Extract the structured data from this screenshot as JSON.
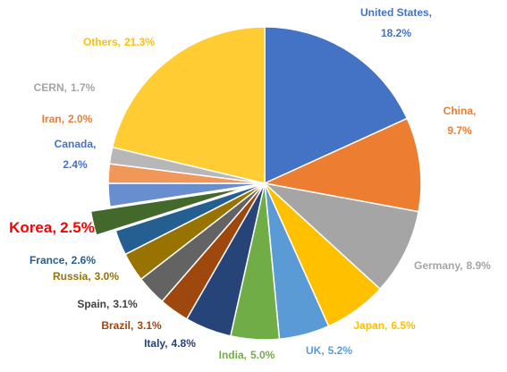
{
  "chart_data": {
    "type": "pie",
    "categories": [
      "United States,",
      "China,",
      "Germany,",
      "Japan,",
      "UK,",
      "India,",
      "Italy,",
      "Brazil,",
      "Spain,",
      "Russia,",
      "France,",
      "Korea,",
      "Canada,",
      "Iran,",
      "CERN,",
      "Others,"
    ],
    "values": [
      18.2,
      9.7,
      8.9,
      6.5,
      5.2,
      5.0,
      4.8,
      3.1,
      3.1,
      3.0,
      2.6,
      2.5,
      2.4,
      2.0,
      1.7,
      21.3
    ],
    "value_labels": [
      "18.2%",
      "9.7%",
      "8.9%",
      "6.5%",
      "5.2%",
      "5.0%",
      "4.8%",
      "3.1%",
      "3.1%",
      "3.0%",
      "2.6%",
      "2.5%",
      "2.4%",
      "2.0%",
      "1.7%",
      "21.3%"
    ],
    "colors": [
      "#4472c4",
      "#ed7d31",
      "#a5a5a5",
      "#ffc000",
      "#5b9bd5",
      "#70ad47",
      "#264478",
      "#9e480e",
      "#636363",
      "#997300",
      "#255e91",
      "#43682b",
      "#698ed0",
      "#f1975a",
      "#b7b7b7",
      "#ffcd33"
    ],
    "label_colors": [
      "#4472c4",
      "#ed7d31",
      "#a5a5a5",
      "#ffc000",
      "#5b9bd5",
      "#70ad47",
      "#264478",
      "#9e480e",
      "#404040",
      "#997300",
      "#255e91",
      "#ff0000",
      "#4472c4",
      "#ed7d31",
      "#a5a5a5",
      "#ffc000"
    ],
    "exploded": [
      11
    ]
  }
}
